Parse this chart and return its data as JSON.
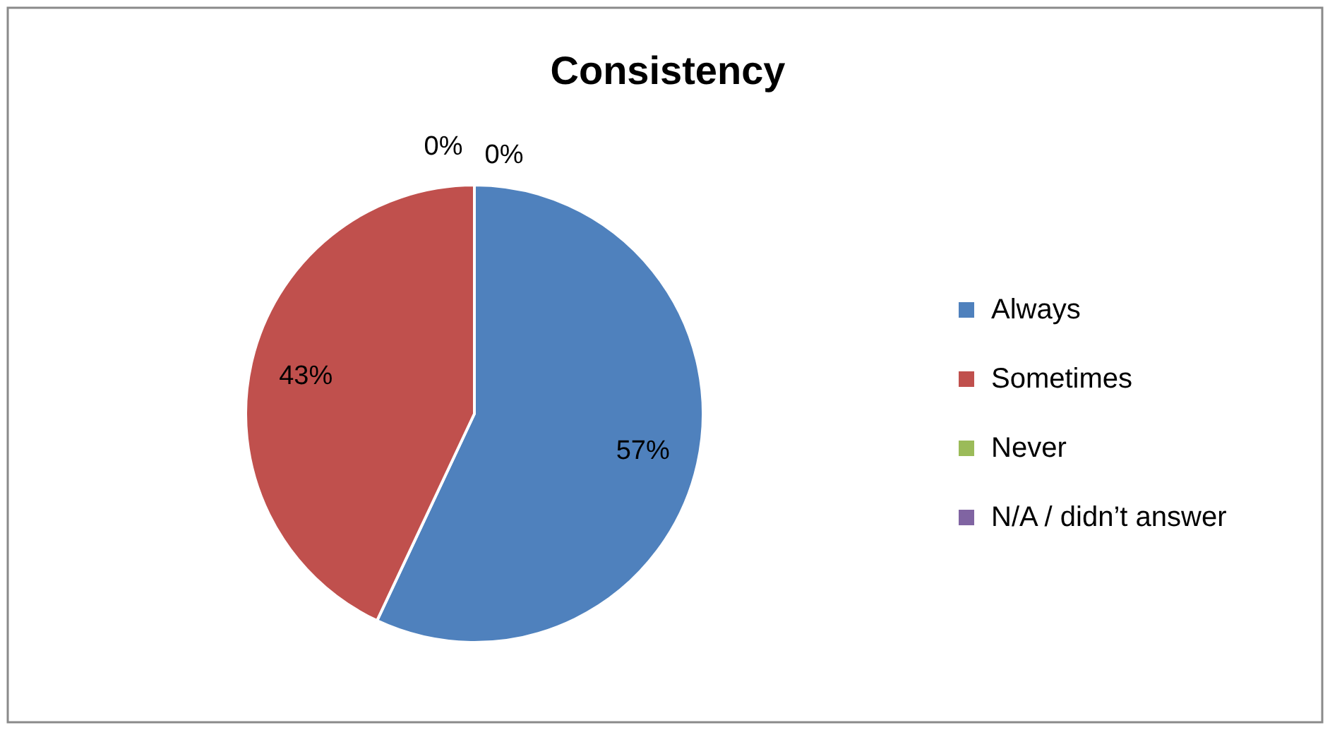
{
  "chart_data": {
    "type": "pie",
    "title": "Consistency",
    "categories": [
      "Always",
      "Sometimes",
      "Never",
      "N/A / didn’t answer"
    ],
    "values": [
      57,
      43,
      0,
      0
    ],
    "colors": [
      "#4f81bd",
      "#c0504d",
      "#9bbb59",
      "#8064a2"
    ],
    "value_labels": [
      "57%",
      "43%",
      "0%",
      "0%"
    ],
    "legend": "right"
  }
}
